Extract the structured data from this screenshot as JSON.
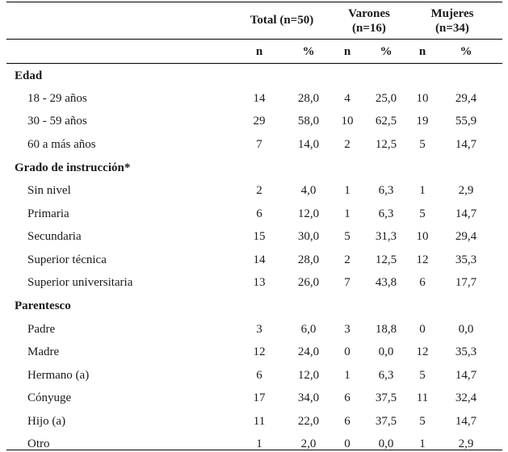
{
  "table": {
    "header": {
      "total": "Total (n=50)",
      "varones_line1": "Varones",
      "varones_line2": "(n=16)",
      "mujeres_line1": "Mujeres",
      "mujeres_line2": "(n=34)",
      "sub": [
        "n",
        "%",
        "n",
        "%",
        "n",
        "%"
      ]
    },
    "sections": [
      {
        "title": "Edad",
        "rows": [
          {
            "label": "18 - 29 años",
            "values": [
              "14",
              "28,0",
              "4",
              "25,0",
              "10",
              "29,4"
            ]
          },
          {
            "label": "30 - 59 años",
            "values": [
              "29",
              "58,0",
              "10",
              "62,5",
              "19",
              "55,9"
            ]
          },
          {
            "label": "60 a más años",
            "values": [
              "7",
              "14,0",
              "2",
              "12,5",
              "5",
              "14,7"
            ]
          }
        ]
      },
      {
        "title": "Grado de instrucción*",
        "rows": [
          {
            "label": "Sin nivel",
            "values": [
              "2",
              "4,0",
              "1",
              "6,3",
              "1",
              "2,9"
            ]
          },
          {
            "label": "Primaria",
            "values": [
              "6",
              "12,0",
              "1",
              "6,3",
              "5",
              "14,7"
            ]
          },
          {
            "label": "Secundaria",
            "values": [
              "15",
              "30,0",
              "5",
              "31,3",
              "10",
              "29,4"
            ]
          },
          {
            "label": "Superior técnica",
            "values": [
              "14",
              "28,0",
              "2",
              "12,5",
              "12",
              "35,3"
            ]
          },
          {
            "label": "Superior universitaria",
            "values": [
              "13",
              "26,0",
              "7",
              "43,8",
              "6",
              "17,7"
            ]
          }
        ]
      },
      {
        "title": "Parentesco",
        "rows": [
          {
            "label": "Padre",
            "values": [
              "3",
              "6,0",
              "3",
              "18,8",
              "0",
              "0,0"
            ]
          },
          {
            "label": "Madre",
            "values": [
              "12",
              "24,0",
              "0",
              "0,0",
              "12",
              "35,3"
            ]
          },
          {
            "label": "Hermano (a)",
            "values": [
              "6",
              "12,0",
              "1",
              "6,3",
              "5",
              "14,7"
            ]
          },
          {
            "label": "Cónyuge",
            "values": [
              "17",
              "34,0",
              "6",
              "37,5",
              "11",
              "32,4"
            ]
          },
          {
            "label": "Hijo (a)",
            "values": [
              "11",
              "22,0",
              "6",
              "37,5",
              "5",
              "14,7"
            ]
          },
          {
            "label": "Otro",
            "values": [
              "1",
              "2,0",
              "0",
              "0,0",
              "1",
              "2,9"
            ]
          }
        ]
      }
    ]
  }
}
